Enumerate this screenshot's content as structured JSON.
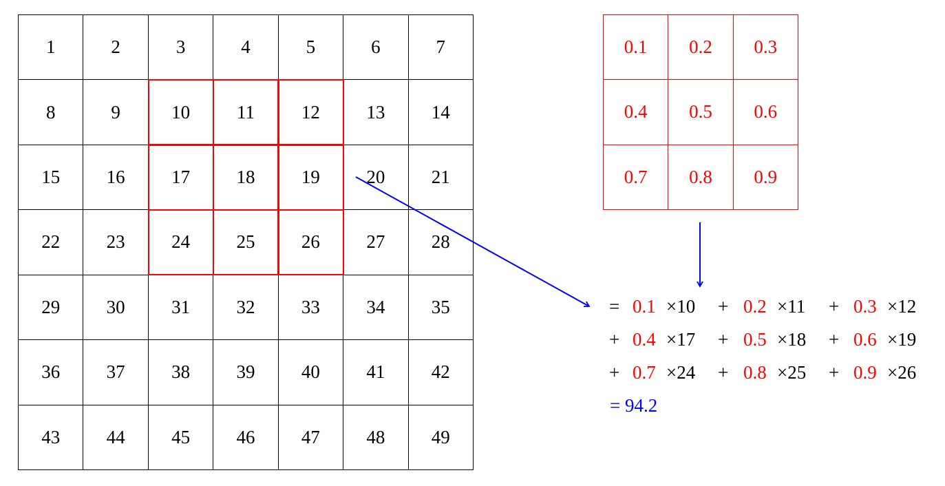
{
  "input_matrix": {
    "rows": [
      [
        1,
        2,
        3,
        4,
        5,
        6,
        7
      ],
      [
        8,
        9,
        10,
        11,
        12,
        13,
        14
      ],
      [
        15,
        16,
        17,
        18,
        19,
        20,
        21
      ],
      [
        22,
        23,
        24,
        25,
        26,
        27,
        28
      ],
      [
        29,
        30,
        31,
        32,
        33,
        34,
        35
      ],
      [
        36,
        37,
        38,
        39,
        40,
        41,
        42
      ],
      [
        43,
        44,
        45,
        46,
        47,
        48,
        49
      ]
    ],
    "highlight": {
      "row_start": 1,
      "col_start": 2,
      "size": 3
    }
  },
  "kernel": {
    "rows": [
      [
        "0.1",
        "0.2",
        "0.3"
      ],
      [
        "0.4",
        "0.5",
        "0.6"
      ],
      [
        "0.7",
        "0.8",
        "0.9"
      ]
    ]
  },
  "equation": {
    "lines": [
      [
        {
          "op": "=",
          "coef": "0.1",
          "val": "×10"
        },
        {
          "op": "+",
          "coef": "0.2",
          "val": "×11"
        },
        {
          "op": "+",
          "coef": "0.3",
          "val": "×12"
        }
      ],
      [
        {
          "op": "+",
          "coef": "0.4",
          "val": "×17"
        },
        {
          "op": "+",
          "coef": "0.5",
          "val": "×18"
        },
        {
          "op": "+",
          "coef": "0.6",
          "val": "×19"
        }
      ],
      [
        {
          "op": "+",
          "coef": "0.7",
          "val": "×24"
        },
        {
          "op": "+",
          "coef": "0.8",
          "val": "×25"
        },
        {
          "op": "+",
          "coef": "0.9",
          "val": "×26"
        }
      ]
    ],
    "result": "= 94.2"
  },
  "colors": {
    "kernel": "#ff0000",
    "highlight": "#ff0000",
    "arrow": "#0000ff",
    "result": "#0000ff"
  }
}
